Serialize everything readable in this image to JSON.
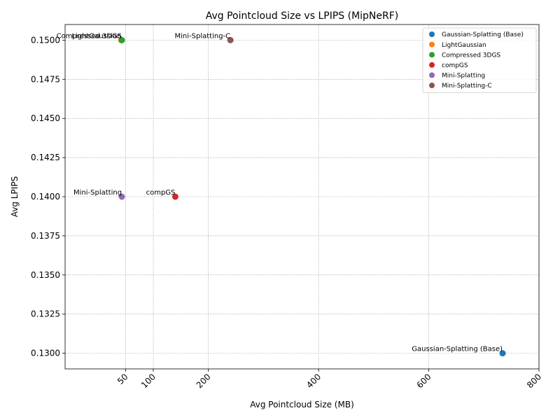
{
  "chart_data": {
    "type": "scatter",
    "title": "Avg Pointcloud Size vs LPIPS (MipNeRF)",
    "xlabel": "Avg Pointcloud Size (MB)",
    "ylabel": "Avg LPIPS",
    "xlim": [
      -60,
      800
    ],
    "ylim": [
      0.129,
      0.151
    ],
    "xticks": [
      50,
      100,
      200,
      400,
      600,
      800
    ],
    "yticks": [
      "0.1300",
      "0.1325",
      "0.1350",
      "0.1375",
      "0.1400",
      "0.1425",
      "0.1450",
      "0.1475",
      "0.1500"
    ],
    "yticks_values": [
      0.13,
      0.1325,
      0.135,
      0.1375,
      0.14,
      0.1425,
      0.145,
      0.1475,
      0.15
    ],
    "grid": true,
    "legend_position": "top-right",
    "series": [
      {
        "name": "Gaussian-Splatting (Base)",
        "label": "Gaussian-Splatting (Base)",
        "color": "#1f77b4",
        "x": 734,
        "y": 0.13
      },
      {
        "name": "LightGaussian",
        "label": "LightGaussian",
        "color": "#ff7f0e",
        "x": 42,
        "y": 0.15
      },
      {
        "name": "Compressed 3DGS",
        "label": "Compressed 3DGS",
        "color": "#2ca02c",
        "x": 43,
        "y": 0.15
      },
      {
        "name": "compGS",
        "label": "compGS",
        "color": "#d62728",
        "x": 140,
        "y": 0.14
      },
      {
        "name": "Mini-Splatting",
        "label": "Mini-Splatting",
        "color": "#9467bd",
        "x": 43,
        "y": 0.14
      },
      {
        "name": "Mini-Splatting-C",
        "label": "Mini-Splatting-C",
        "color": "#8c564b",
        "x": 240,
        "y": 0.15
      }
    ]
  }
}
